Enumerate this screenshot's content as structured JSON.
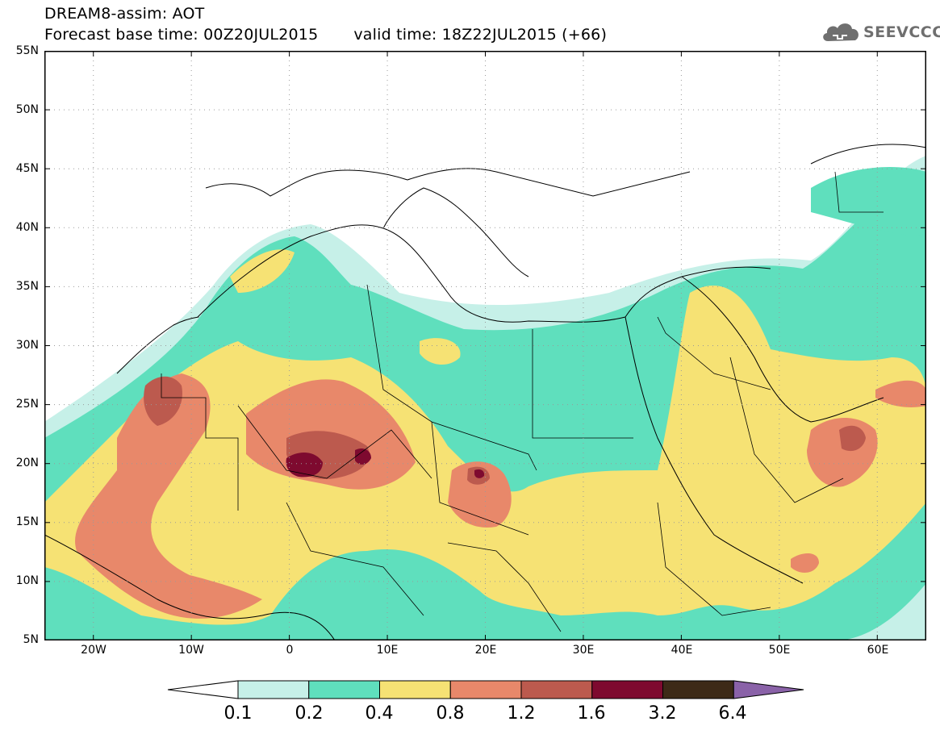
{
  "title": {
    "line1": "DREAM8-assim: AOT",
    "base_time": "Forecast base time: 00Z20JUL2015",
    "valid_time": "valid time: 18Z22JUL2015 (+66)"
  },
  "logo": {
    "text": "SEEVCCC",
    "icon": "cloud-icon"
  },
  "axes": {
    "lat_labels": [
      "55N",
      "50N",
      "45N",
      "40N",
      "35N",
      "30N",
      "25N",
      "20N",
      "15N",
      "10N",
      "5N"
    ],
    "lon_labels": [
      "20W",
      "10W",
      "0",
      "10E",
      "20E",
      "30E",
      "40E",
      "50E",
      "60E"
    ],
    "lon_range": [
      -25,
      65
    ],
    "lat_range": [
      5,
      55
    ]
  },
  "legend": {
    "thresholds": [
      "0.1",
      "0.2",
      "0.4",
      "0.8",
      "1.2",
      "1.6",
      "3.2",
      "6.4"
    ],
    "colors": [
      "#ffffff",
      "#c6f0e8",
      "#5fdfbd",
      "#f6e274",
      "#e8886a",
      "#bc5a4e",
      "#7e0a2f",
      "#3d2a17",
      "#8a62a8"
    ]
  },
  "colors": {
    "background": "#ffffff",
    "border": "#000000",
    "grid": "#9a9a9a"
  }
}
